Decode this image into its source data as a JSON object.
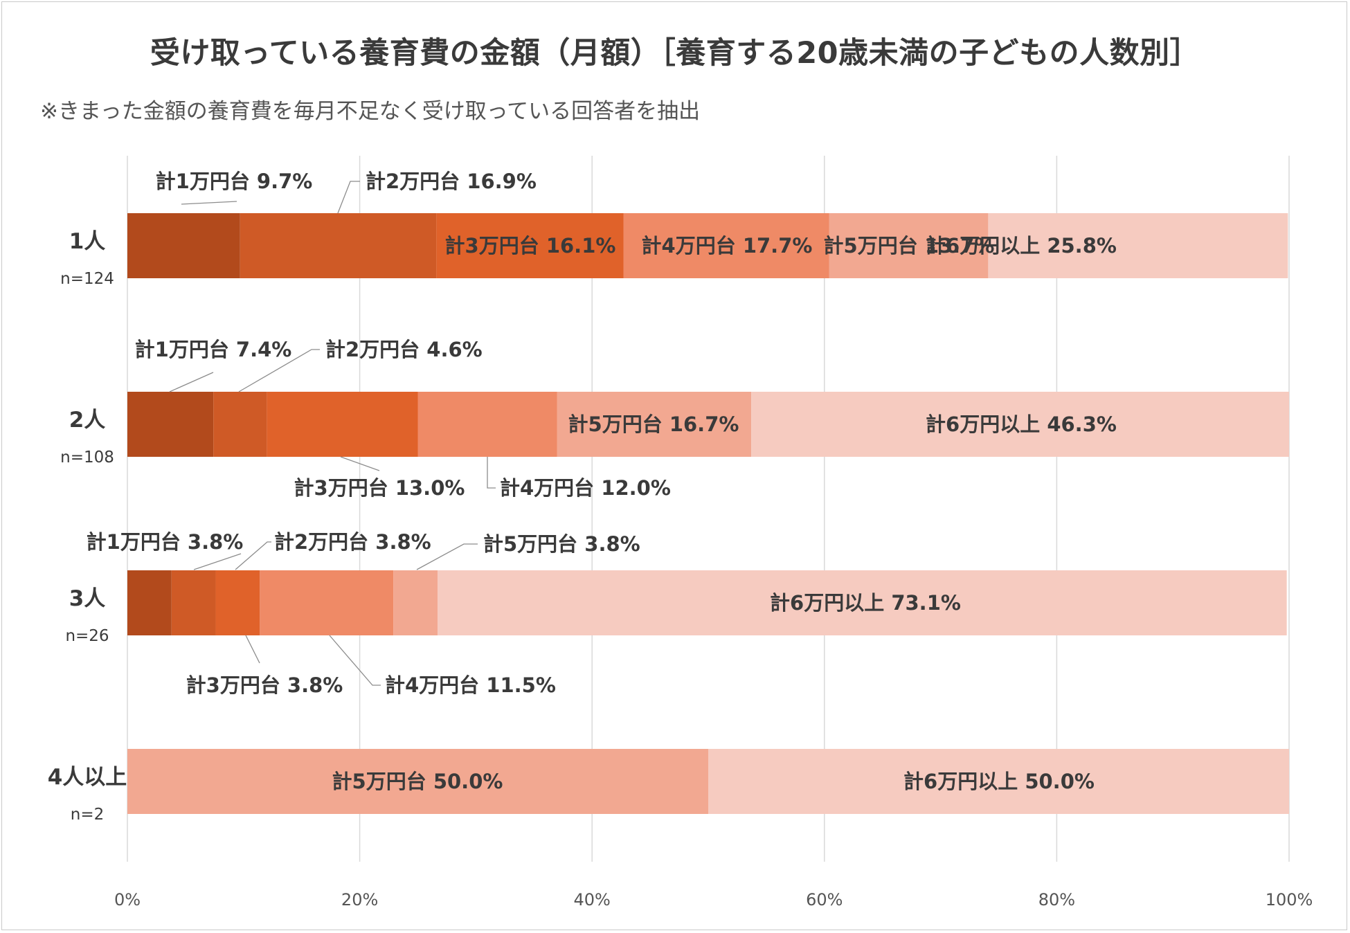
{
  "chart_data": {
    "type": "bar",
    "orientation": "horizontal",
    "stacked": "100%",
    "title": "受け取っている養育費の金額（月額）［養育する20歳未満の子どもの人数別］",
    "subtitle": "※きまった金額の養育費を毎月不足なく受け取っている回答者を抽出",
    "categories": [
      {
        "label": "1人",
        "n": "n=124"
      },
      {
        "label": "2人",
        "n": "n=108"
      },
      {
        "label": "3人",
        "n": "n=26"
      },
      {
        "label": "4人以上",
        "n": "n=2"
      }
    ],
    "segment_names": [
      "計1万円台",
      "計2万円台",
      "計3万円台",
      "計4万円台",
      "計5万円台",
      "計6万円以上"
    ],
    "colors": [
      "#b24a1c",
      "#cf5a26",
      "#e0622a",
      "#ef8a66",
      "#f2a891",
      "#f6cbc0"
    ],
    "values": [
      [
        9.7,
        16.9,
        16.1,
        17.7,
        13.7,
        25.8
      ],
      [
        7.4,
        4.6,
        13.0,
        12.0,
        16.7,
        46.3
      ],
      [
        3.8,
        3.8,
        3.8,
        11.5,
        3.8,
        73.1
      ],
      [
        0,
        0,
        0,
        0,
        50.0,
        50.0
      ]
    ],
    "data_labels": [
      [
        "計1万円台 9.7%",
        "計2万円台 16.9%",
        "計3万円台 16.1%",
        "計4万円台 17.7%",
        "計5万円台 13.7%",
        "計6万円以上 25.8%"
      ],
      [
        "計1万円台 7.4%",
        "計2万円台 4.6%",
        "計3万円台 13.0%",
        "計4万円台 12.0%",
        "計5万円台 16.7%",
        "計6万円以上 46.3%"
      ],
      [
        "計1万円台 3.8%",
        "計2万円台 3.8%",
        "計3万円台 3.8%",
        "計4万円台 11.5%",
        "計5万円台 3.8%",
        "計6万円以上 73.1%"
      ],
      [
        "",
        "",
        "",
        "",
        "計5万円台 50.0%",
        "計6万円以上 50.0%"
      ]
    ],
    "xlim": [
      0,
      100
    ],
    "x_ticks": [
      "0%",
      "20%",
      "40%",
      "60%",
      "80%",
      "100%"
    ],
    "grid": true,
    "legend": "none"
  }
}
